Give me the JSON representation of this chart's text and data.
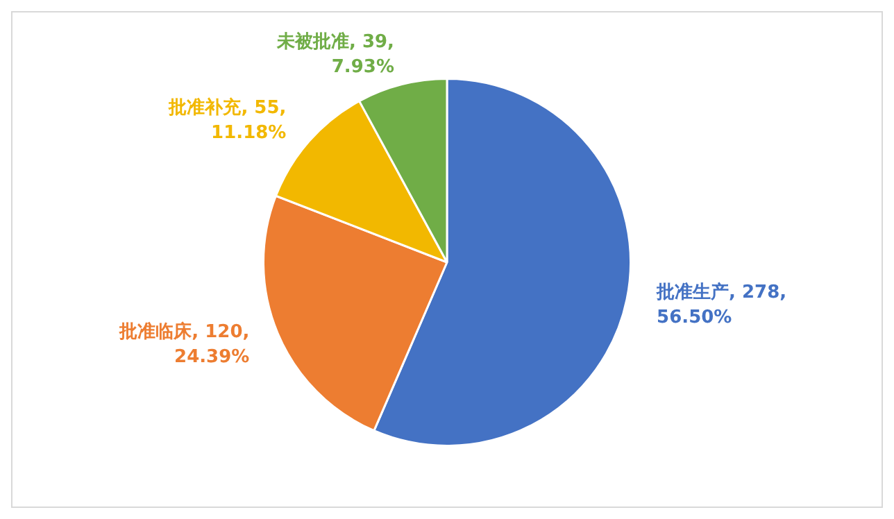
{
  "chart_data": {
    "type": "pie",
    "categories": [
      "批准生产",
      "批准临床",
      "批准补充",
      "未被批准"
    ],
    "values": [
      278,
      120,
      55,
      39
    ],
    "value_labels": [
      "278, 56.50%",
      "120, 24.39%",
      "55, 11.18%",
      "39, 7.93%"
    ],
    "colors": [
      "#4472c4",
      "#ed7d31",
      "#f2b800",
      "#70ad47"
    ],
    "legend": false
  }
}
